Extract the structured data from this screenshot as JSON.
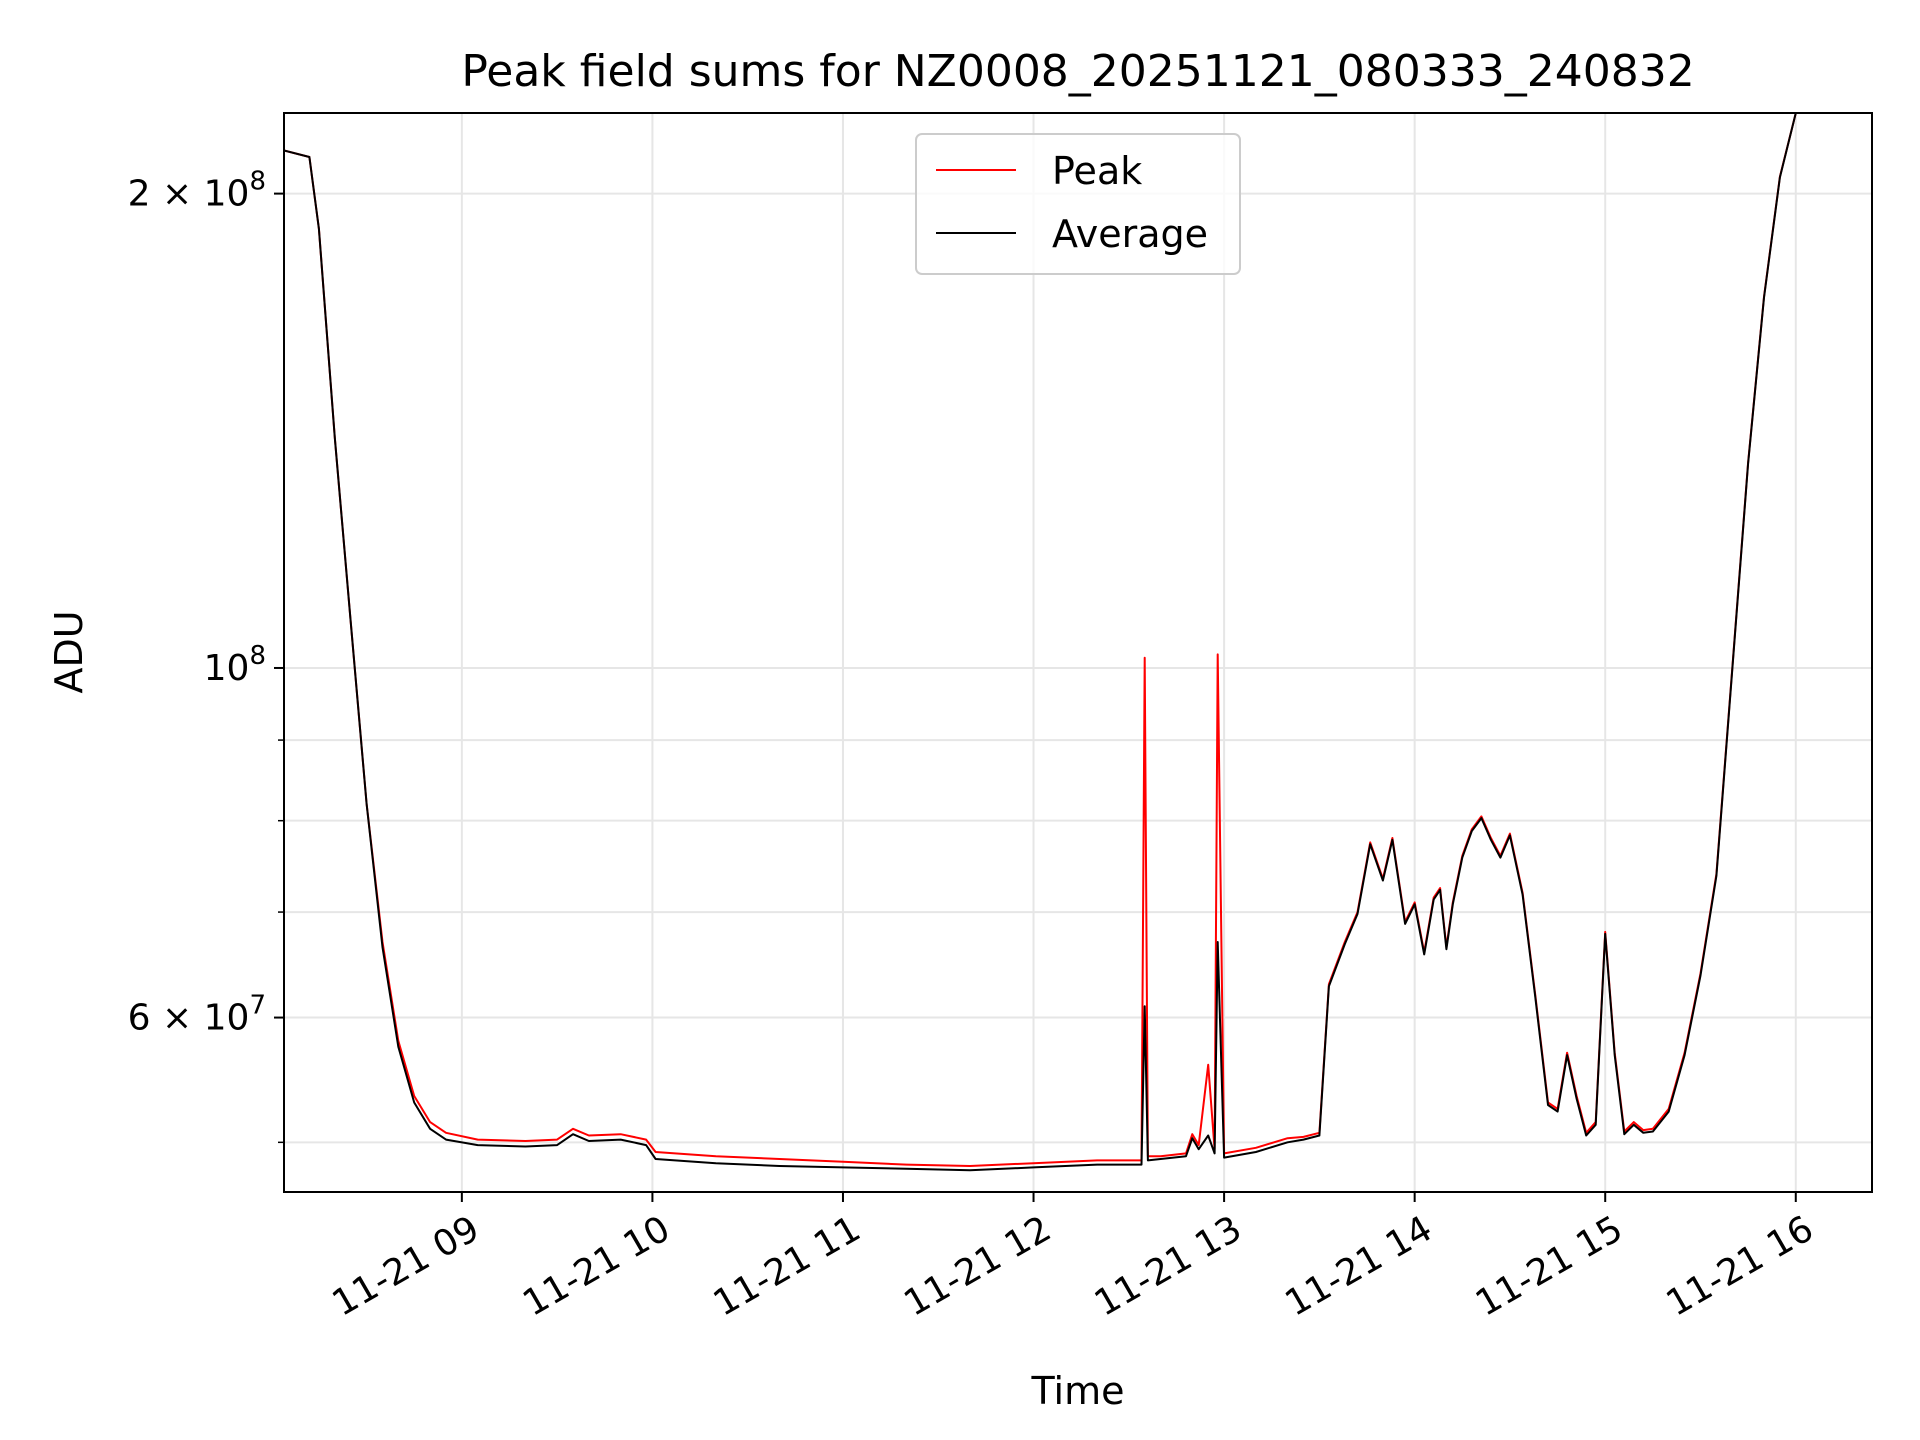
{
  "chart_data": {
    "type": "line",
    "title": "Peak field sums for NZ0008_20251121_080333_240832",
    "xlabel": "Time",
    "ylabel": "ADU",
    "yscale": "log",
    "xlim": [
      "2025-11-21 08:04",
      "2025-11-21 16:24"
    ],
    "ylim": [
      46500000,
      225000000
    ],
    "x_ticks": [
      {
        "value": "2025-11-21 09:00",
        "label": "11-21 09"
      },
      {
        "value": "2025-11-21 10:00",
        "label": "11-21 10"
      },
      {
        "value": "2025-11-21 11:00",
        "label": "11-21 11"
      },
      {
        "value": "2025-11-21 12:00",
        "label": "11-21 12"
      },
      {
        "value": "2025-11-21 13:00",
        "label": "11-21 13"
      },
      {
        "value": "2025-11-21 14:00",
        "label": "11-21 14"
      },
      {
        "value": "2025-11-21 15:00",
        "label": "11-21 15"
      },
      {
        "value": "2025-11-21 16:00",
        "label": "11-21 16"
      }
    ],
    "y_major_ticks": [
      {
        "value": 100000000,
        "base": "10",
        "exp": "8",
        "prefix": ""
      },
      {
        "value": 200000000,
        "base": "10",
        "exp": "8",
        "prefix": "2 × "
      },
      {
        "value": 60000000,
        "base": "10",
        "exp": "7",
        "prefix": "6 × "
      }
    ],
    "y_minor_ticks": [
      50000000,
      70000000,
      80000000,
      90000000
    ],
    "grid": true,
    "legend_position": "upper-center",
    "series": [
      {
        "name": "Peak",
        "color": "#ff0000",
        "x": [
          "2025-11-21 08:04",
          "2025-11-21 08:12",
          "2025-11-21 08:15",
          "2025-11-21 08:20",
          "2025-11-21 08:25",
          "2025-11-21 08:30",
          "2025-11-21 08:35",
          "2025-11-21 08:40",
          "2025-11-21 08:45",
          "2025-11-21 08:50",
          "2025-11-21 08:55",
          "2025-11-21 09:05",
          "2025-11-21 09:20",
          "2025-11-21 09:30",
          "2025-11-21 09:35",
          "2025-11-21 09:40",
          "2025-11-21 09:50",
          "2025-11-21 09:58",
          "2025-11-21 10:01",
          "2025-11-21 10:20",
          "2025-11-21 10:40",
          "2025-11-21 11:00",
          "2025-11-21 11:20",
          "2025-11-21 11:40",
          "2025-11-21 12:00",
          "2025-11-21 12:20",
          "2025-11-21 12:34",
          "2025-11-21 12:35",
          "2025-11-21 12:36",
          "2025-11-21 12:40",
          "2025-11-21 12:48",
          "2025-11-21 12:50",
          "2025-11-21 12:52",
          "2025-11-21 12:55",
          "2025-11-21 12:57",
          "2025-11-21 12:58",
          "2025-11-21 13:00",
          "2025-11-21 13:10",
          "2025-11-21 13:20",
          "2025-11-21 13:25",
          "2025-11-21 13:30",
          "2025-11-21 13:33",
          "2025-11-21 13:38",
          "2025-11-21 13:42",
          "2025-11-21 13:46",
          "2025-11-21 13:50",
          "2025-11-21 13:53",
          "2025-11-21 13:57",
          "2025-11-21 14:00",
          "2025-11-21 14:03",
          "2025-11-21 14:06",
          "2025-11-21 14:08",
          "2025-11-21 14:10",
          "2025-11-21 14:12",
          "2025-11-21 14:15",
          "2025-11-21 14:18",
          "2025-11-21 14:21",
          "2025-11-21 14:24",
          "2025-11-21 14:27",
          "2025-11-21 14:30",
          "2025-11-21 14:34",
          "2025-11-21 14:38",
          "2025-11-21 14:42",
          "2025-11-21 14:45",
          "2025-11-21 14:48",
          "2025-11-21 14:51",
          "2025-11-21 14:54",
          "2025-11-21 14:57",
          "2025-11-21 15:00",
          "2025-11-21 15:03",
          "2025-11-21 15:06",
          "2025-11-21 15:09",
          "2025-11-21 15:12",
          "2025-11-21 15:15",
          "2025-11-21 15:20",
          "2025-11-21 15:25",
          "2025-11-21 15:30",
          "2025-11-21 15:35",
          "2025-11-21 15:40",
          "2025-11-21 15:45",
          "2025-11-21 15:50",
          "2025-11-21 15:55",
          "2025-11-21 16:00",
          "2025-11-21 16:03"
        ],
        "y": [
          213000000,
          211000000,
          190000000,
          140000000,
          107000000,
          82000000,
          67000000,
          58000000,
          53500000,
          51500000,
          50700000,
          50200000,
          50100000,
          50200000,
          51000000,
          50500000,
          50600000,
          50200000,
          49300000,
          49000000,
          48800000,
          48600000,
          48400000,
          48300000,
          48500000,
          48700000,
          48700000,
          101500000,
          49000000,
          49000000,
          49200000,
          50600000,
          49800000,
          56000000,
          49500000,
          102000000,
          49200000,
          49600000,
          50300000,
          50400000,
          50700000,
          63000000,
          67000000,
          70000000,
          77500000,
          73500000,
          78000000,
          69000000,
          71000000,
          66000000,
          71500000,
          72500000,
          66500000,
          71000000,
          76000000,
          79000000,
          80500000,
          78000000,
          76000000,
          78500000,
          72000000,
          62000000,
          53000000,
          52500000,
          57000000,
          53500000,
          50700000,
          51500000,
          68000000,
          57000000,
          50800000,
          51500000,
          50900000,
          51000000,
          52500000,
          57000000,
          64000000,
          74000000,
          100000000,
          135000000,
          172000000,
          205000000,
          225000000,
          225000000
        ]
      },
      {
        "name": "Average",
        "color": "#000000",
        "x": [
          "2025-11-21 08:04",
          "2025-11-21 08:12",
          "2025-11-21 08:15",
          "2025-11-21 08:20",
          "2025-11-21 08:25",
          "2025-11-21 08:30",
          "2025-11-21 08:35",
          "2025-11-21 08:40",
          "2025-11-21 08:45",
          "2025-11-21 08:50",
          "2025-11-21 08:55",
          "2025-11-21 09:05",
          "2025-11-21 09:20",
          "2025-11-21 09:30",
          "2025-11-21 09:35",
          "2025-11-21 09:40",
          "2025-11-21 09:50",
          "2025-11-21 09:58",
          "2025-11-21 10:01",
          "2025-11-21 10:20",
          "2025-11-21 10:40",
          "2025-11-21 11:00",
          "2025-11-21 11:20",
          "2025-11-21 11:40",
          "2025-11-21 12:00",
          "2025-11-21 12:20",
          "2025-11-21 12:34",
          "2025-11-21 12:35",
          "2025-11-21 12:36",
          "2025-11-21 12:40",
          "2025-11-21 12:48",
          "2025-11-21 12:50",
          "2025-11-21 12:52",
          "2025-11-21 12:55",
          "2025-11-21 12:57",
          "2025-11-21 12:58",
          "2025-11-21 13:00",
          "2025-11-21 13:10",
          "2025-11-21 13:20",
          "2025-11-21 13:25",
          "2025-11-21 13:30",
          "2025-11-21 13:33",
          "2025-11-21 13:38",
          "2025-11-21 13:42",
          "2025-11-21 13:46",
          "2025-11-21 13:50",
          "2025-11-21 13:53",
          "2025-11-21 13:57",
          "2025-11-21 14:00",
          "2025-11-21 14:03",
          "2025-11-21 14:06",
          "2025-11-21 14:08",
          "2025-11-21 14:10",
          "2025-11-21 14:12",
          "2025-11-21 14:15",
          "2025-11-21 14:18",
          "2025-11-21 14:21",
          "2025-11-21 14:24",
          "2025-11-21 14:27",
          "2025-11-21 14:30",
          "2025-11-21 14:34",
          "2025-11-21 14:38",
          "2025-11-21 14:42",
          "2025-11-21 14:45",
          "2025-11-21 14:48",
          "2025-11-21 14:51",
          "2025-11-21 14:54",
          "2025-11-21 14:57",
          "2025-11-21 15:00",
          "2025-11-21 15:03",
          "2025-11-21 15:06",
          "2025-11-21 15:09",
          "2025-11-21 15:12",
          "2025-11-21 15:15",
          "2025-11-21 15:20",
          "2025-11-21 15:25",
          "2025-11-21 15:30",
          "2025-11-21 15:35",
          "2025-11-21 15:40",
          "2025-11-21 15:45",
          "2025-11-21 15:50",
          "2025-11-21 15:55",
          "2025-11-21 16:00",
          "2025-11-21 16:03"
        ],
        "y": [
          213000000,
          211000000,
          190000000,
          140000000,
          107000000,
          82000000,
          66500000,
          57500000,
          53000000,
          51000000,
          50200000,
          49800000,
          49700000,
          49800000,
          50600000,
          50100000,
          50200000,
          49800000,
          48800000,
          48500000,
          48300000,
          48200000,
          48100000,
          48000000,
          48200000,
          48400000,
          48400000,
          61000000,
          48700000,
          48800000,
          49000000,
          50300000,
          49500000,
          50500000,
          49200000,
          67000000,
          48900000,
          49300000,
          50000000,
          50200000,
          50500000,
          62800000,
          66800000,
          69800000,
          77300000,
          73300000,
          77800000,
          68800000,
          70800000,
          65800000,
          71300000,
          72300000,
          66300000,
          70800000,
          75800000,
          78800000,
          80300000,
          77800000,
          75800000,
          78300000,
          71800000,
          61800000,
          52800000,
          52300000,
          56800000,
          53300000,
          50500000,
          51300000,
          67800000,
          56800000,
          50600000,
          51300000,
          50700000,
          50800000,
          52300000,
          56800000,
          63800000,
          73800000,
          99800000,
          134800000,
          171800000,
          204800000,
          225000000,
          225000000
        ]
      }
    ]
  }
}
